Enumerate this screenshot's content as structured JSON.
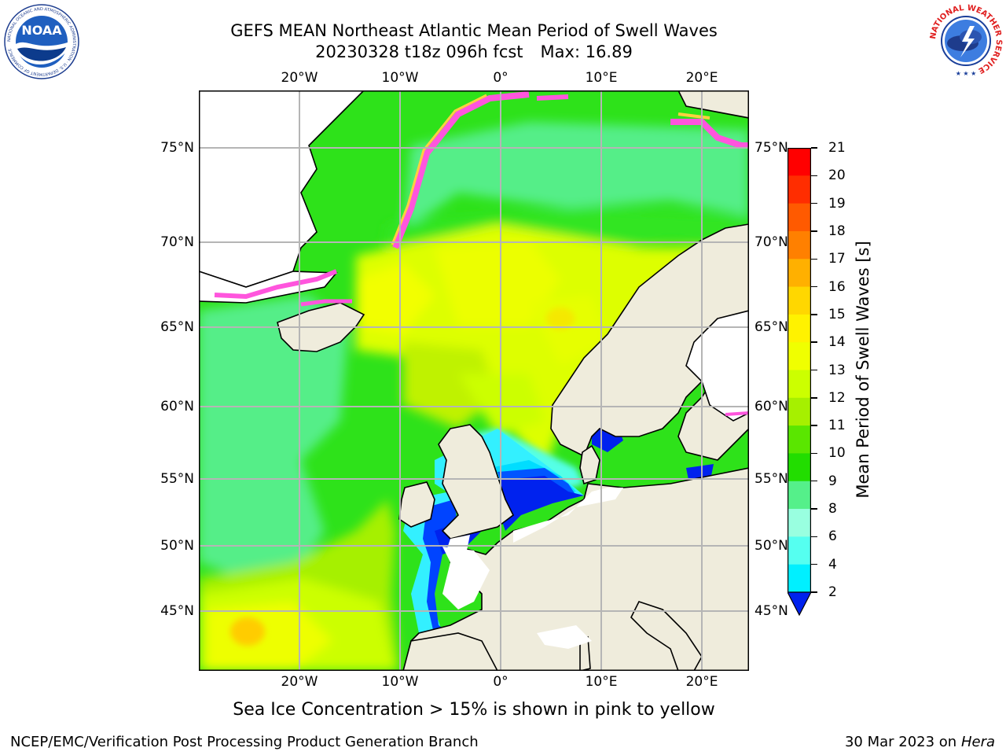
{
  "title": {
    "line1": "GEFS MEAN Northeast Atlantic Mean Period of Swell Waves",
    "run": "20230328 t18z 096h fcst",
    "max": "Max: 16.89"
  },
  "axes": {
    "lon_labels": [
      "20°W",
      "10°W",
      "0°",
      "10°E",
      "20°E"
    ],
    "lat_labels": [
      "75°N",
      "70°N",
      "65°N",
      "60°N",
      "55°N",
      "50°N",
      "45°N"
    ]
  },
  "colorbar": {
    "label": "Mean Period of Swell Waves [s]",
    "ticks": [
      "21",
      "20",
      "19",
      "18",
      "17",
      "16",
      "15",
      "14",
      "13",
      "12",
      "11",
      "10",
      "9",
      "8",
      "6",
      "4",
      "2"
    ],
    "colors": [
      "#ff0000",
      "#ff2d00",
      "#ff5a00",
      "#ff8000",
      "#ffb000",
      "#ffd700",
      "#fff200",
      "#f0ff00",
      "#ccff00",
      "#a6f000",
      "#5ae600",
      "#22dd00",
      "#55f08a",
      "#99ffe0",
      "#55fff0",
      "#00f0ff",
      "#0099ff",
      "#0044ff"
    ],
    "extend_color": "#0022ee"
  },
  "legend": {
    "ice_note": "Sea Ice Concentration > 15% is shown in pink to yellow"
  },
  "footer": {
    "left": "NCEP/EMC/Verification Post Processing Product Generation Branch",
    "date": "30 Mar 2023 on",
    "machine": "Hera"
  },
  "logos": {
    "left": "NOAA",
    "left_ring": "NATIONAL OCEANIC AND ATMOSPHERIC ADMINISTRATION · U.S. DEPARTMENT OF COMMERCE",
    "right": "NATIONAL WEATHER SERVICE"
  },
  "colors": {
    "land": "#efecdc",
    "grid": "#b5b5b5",
    "ice_pink": "#ff55dd",
    "ice_yellow": "#ffd040"
  }
}
